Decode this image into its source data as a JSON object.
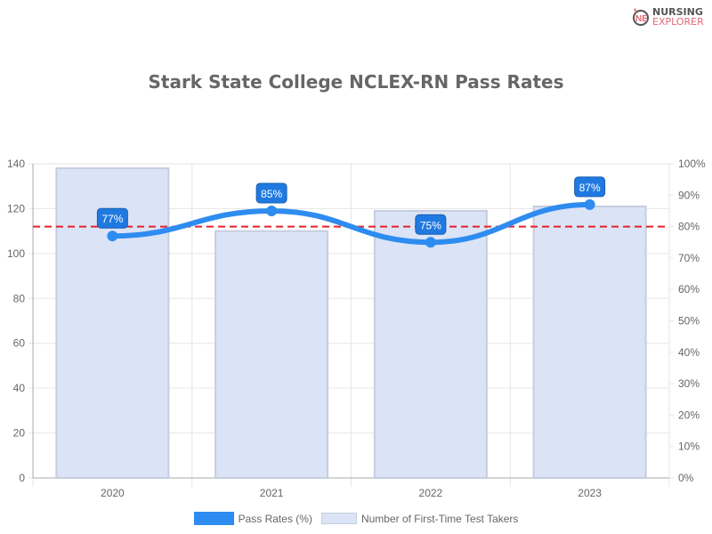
{
  "logo": {
    "line1": "NURSING",
    "line2": "EXPLORER"
  },
  "chart_data": {
    "type": "bar",
    "title": "Stark State College NCLEX-RN Pass Rates",
    "categories": [
      "2020",
      "2021",
      "2022",
      "2023"
    ],
    "series": [
      {
        "name": "Pass Rates (%)",
        "type": "line",
        "axis": "right",
        "values": [
          77,
          85,
          75,
          87
        ],
        "labels": [
          "77%",
          "85%",
          "75%",
          "87%"
        ],
        "color": "#2e8cf0"
      },
      {
        "name": "Number of First-Time Test Takers",
        "type": "bar",
        "axis": "left",
        "values": [
          138,
          110,
          119,
          121
        ],
        "color": "#dbe3f6"
      }
    ],
    "reference_line": {
      "value": 80,
      "axis": "right",
      "color": "#e8202a",
      "style": "dashed"
    },
    "y_left": {
      "ylim": [
        0,
        140
      ],
      "ticks": [
        "0",
        "20",
        "40",
        "60",
        "80",
        "100",
        "120",
        "140"
      ]
    },
    "y_right": {
      "ylim": [
        0,
        100
      ],
      "ticks": [
        "0%",
        "10%",
        "20%",
        "30%",
        "40%",
        "50%",
        "60%",
        "70%",
        "80%",
        "90%",
        "100%"
      ]
    },
    "legend": "bottom"
  }
}
